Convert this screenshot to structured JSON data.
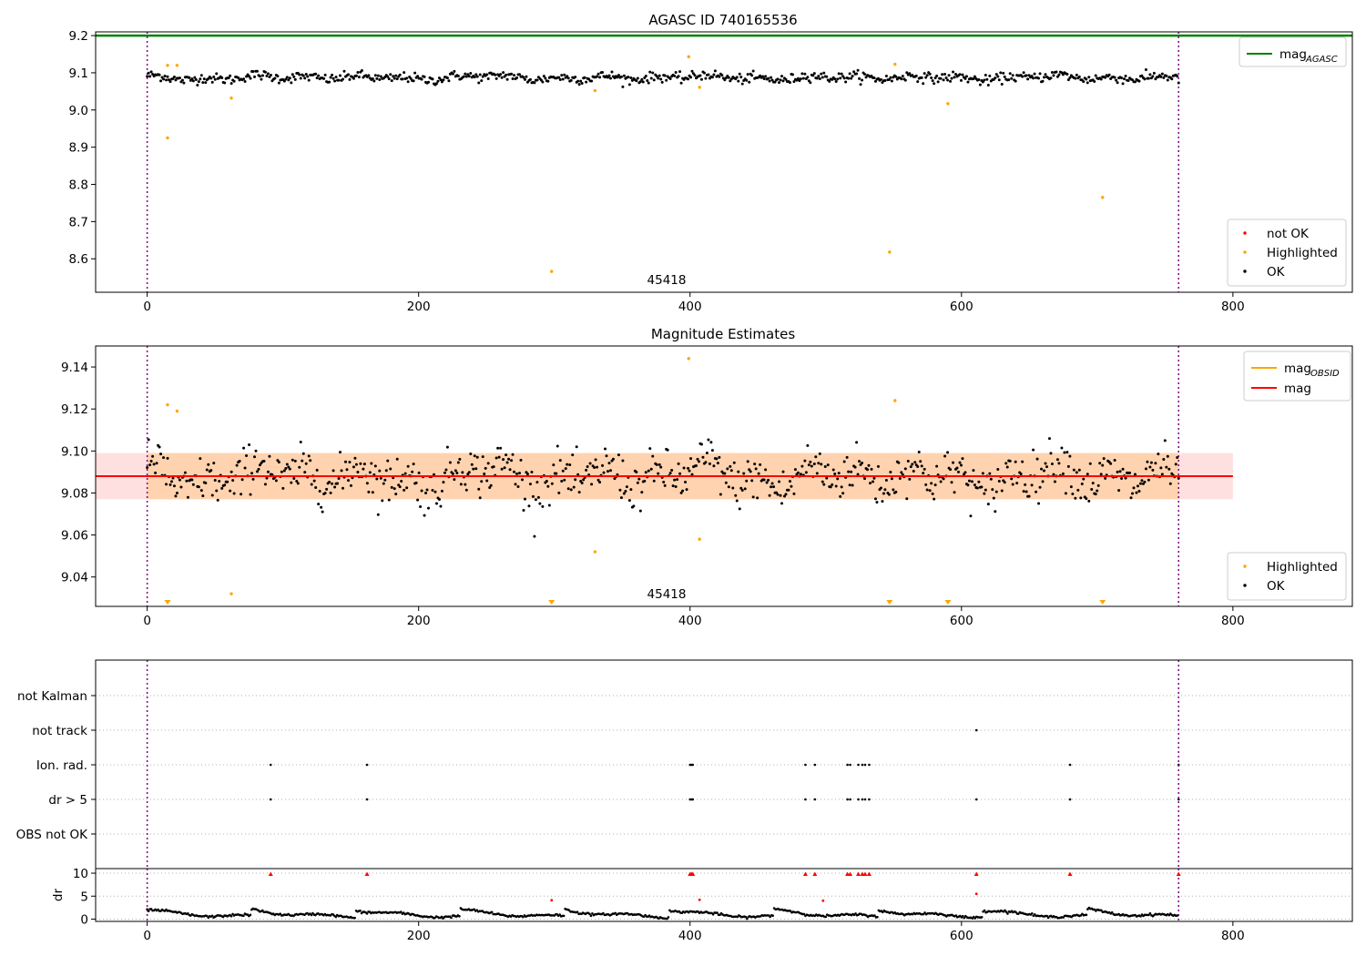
{
  "chart_data": [
    {
      "type": "scatter",
      "title": "AGASC ID 740165536",
      "xlim": [
        -38,
        888
      ],
      "ylim": [
        8.51,
        9.21
      ],
      "xticks": [
        0,
        200,
        400,
        600,
        800
      ],
      "yticks": [
        8.6,
        8.7,
        8.8,
        8.9,
        9.0,
        9.1,
        9.2
      ],
      "annotation": "45418",
      "vlines": [
        0,
        760
      ],
      "agasc_mag": 9.2,
      "legend_lines": [
        {
          "label": "mag",
          "sub": "AGASC",
          "color": "#008000"
        }
      ],
      "legend_points": [
        {
          "label": "not OK",
          "color": "#ff0000"
        },
        {
          "label": "Highlighted",
          "color": "#ffa500"
        },
        {
          "label": "OK",
          "color": "#000000"
        }
      ],
      "highlighted": [
        [
          15,
          8.925
        ],
        [
          15,
          9.12
        ],
        [
          22,
          9.12
        ],
        [
          62,
          9.032
        ],
        [
          298,
          8.566
        ],
        [
          330,
          9.052
        ],
        [
          399,
          9.143
        ],
        [
          407,
          9.061
        ],
        [
          547,
          8.618
        ],
        [
          551,
          9.123
        ],
        [
          590,
          9.017
        ],
        [
          704,
          8.765
        ]
      ],
      "ok_model": {
        "n": 760,
        "x0": 0,
        "x1": 760,
        "center": 9.087,
        "spread": 0.012
      }
    },
    {
      "type": "scatter",
      "title": "Magnitude Estimates",
      "xlim": [
        -38,
        888
      ],
      "ylim": [
        9.026,
        9.15
      ],
      "xticks": [
        0,
        200,
        400,
        600,
        800
      ],
      "yticks": [
        9.04,
        9.06,
        9.08,
        9.1,
        9.12,
        9.14
      ],
      "annotation": "45418",
      "vlines": [
        0,
        760
      ],
      "mag": 9.088,
      "mag_band": [
        9.077,
        9.099
      ],
      "mag_obsid": 9.088,
      "obsid_band": [
        9.077,
        9.099
      ],
      "legend_lines": [
        {
          "label": "mag",
          "sub": "OBSID",
          "color": "#ffa500"
        },
        {
          "label": "mag",
          "sub": "",
          "color": "#ff0000"
        }
      ],
      "legend_points": [
        {
          "label": "Highlighted",
          "color": "#ffa500"
        },
        {
          "label": "OK",
          "color": "#000000"
        }
      ],
      "highlighted": [
        [
          15,
          9.122
        ],
        [
          22,
          9.119
        ],
        [
          62,
          9.032
        ],
        [
          330,
          9.052
        ],
        [
          399,
          9.144
        ],
        [
          407,
          9.058
        ],
        [
          551,
          9.124
        ]
      ],
      "below_range": [
        15,
        298,
        547,
        590,
        704
      ],
      "ok_model": {
        "n": 760,
        "x0": 0,
        "x1": 760,
        "center": 9.088,
        "spread": 0.01
      }
    },
    {
      "type": "scatter",
      "xlim": [
        -38,
        888
      ],
      "xticks": [
        0,
        200,
        400,
        600,
        800
      ],
      "vlines": [
        0,
        760
      ],
      "flag_categories": [
        "not Kalman",
        "not track",
        "Ion. rad.",
        "dr > 5",
        "OBS not OK"
      ],
      "flags": {
        "not track": [
          611
        ],
        "Ion. rad.": [
          91,
          162,
          400,
          401,
          402,
          485,
          492,
          516,
          518,
          524,
          527,
          529,
          532,
          680,
          760
        ],
        "dr > 5": [
          91,
          162,
          400,
          401,
          402,
          485,
          492,
          516,
          518,
          524,
          527,
          529,
          532,
          611,
          680,
          760
        ]
      }
    },
    {
      "type": "scatter",
      "ylabel": "dr",
      "xlim": [
        -38,
        888
      ],
      "ylim": [
        -0.5,
        11
      ],
      "xticks": [
        0,
        200,
        400,
        600,
        800
      ],
      "yticks": [
        0,
        5,
        10
      ],
      "vlines": [
        0,
        760
      ],
      "dr_clipped": [
        91,
        162,
        400,
        401,
        402,
        485,
        492,
        516,
        518,
        524,
        527,
        529,
        532,
        611,
        680,
        760
      ],
      "dr_outliers": [
        [
          298,
          4.1
        ],
        [
          407,
          4.2
        ],
        [
          498,
          4.0
        ],
        [
          611,
          5.5
        ]
      ]
    }
  ]
}
